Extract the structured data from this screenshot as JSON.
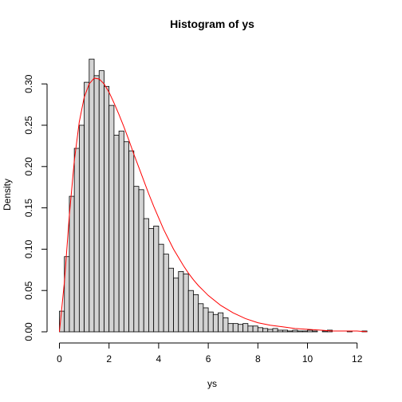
{
  "chart_data": {
    "type": "bar",
    "title": "Histogram of ys",
    "xlabel": "ys",
    "ylabel": "Density",
    "xlim": [
      0,
      12.4
    ],
    "ylim": [
      0,
      0.33
    ],
    "grid": false,
    "bin_width": 0.2,
    "x_ticks": [
      "0",
      "2",
      "4",
      "6",
      "8",
      "10",
      "12"
    ],
    "y_ticks": [
      "0.00",
      "0.05",
      "0.10",
      "0.15",
      "0.20",
      "0.25",
      "0.30"
    ],
    "bins_start": [
      0.0,
      0.2,
      0.4,
      0.6,
      0.8,
      1.0,
      1.2,
      1.4,
      1.6,
      1.8,
      2.0,
      2.2,
      2.4,
      2.6,
      2.8,
      3.0,
      3.2,
      3.4,
      3.6,
      3.8,
      4.0,
      4.2,
      4.4,
      4.6,
      4.8,
      5.0,
      5.2,
      5.4,
      5.6,
      5.8,
      6.0,
      6.2,
      6.4,
      6.6,
      6.8,
      7.0,
      7.2,
      7.4,
      7.6,
      7.8,
      8.0,
      8.2,
      8.4,
      8.6,
      8.8,
      9.0,
      9.2,
      9.4,
      9.6,
      9.8,
      10.0,
      10.2,
      10.4,
      10.6,
      10.8,
      11.0,
      11.2,
      11.4,
      11.6,
      11.8,
      12.0,
      12.2
    ],
    "values": [
      0.025,
      0.091,
      0.164,
      0.222,
      0.25,
      0.302,
      0.33,
      0.31,
      0.316,
      0.297,
      0.274,
      0.238,
      0.243,
      0.23,
      0.219,
      0.176,
      0.172,
      0.137,
      0.125,
      0.128,
      0.106,
      0.094,
      0.077,
      0.065,
      0.073,
      0.07,
      0.05,
      0.045,
      0.034,
      0.029,
      0.024,
      0.021,
      0.023,
      0.017,
      0.01,
      0.01,
      0.009,
      0.01,
      0.007,
      0.007,
      0.005,
      0.004,
      0.003,
      0.004,
      0.002,
      0.002,
      0.001,
      0.002,
      0.001,
      0.001,
      0.002,
      0.001,
      0.0,
      0.001,
      0.002,
      0.0,
      0.0,
      0.0,
      0.001,
      0.0,
      0.0,
      0.001
    ],
    "density_curve": {
      "name": "",
      "color": "#ff0000",
      "x": [
        0.0,
        0.2,
        0.4,
        0.6,
        0.8,
        1.0,
        1.2,
        1.4,
        1.6,
        1.8,
        2.0,
        2.2,
        2.4,
        2.6,
        2.8,
        3.0,
        3.2,
        3.4,
        3.6,
        3.8,
        4.0,
        4.2,
        4.4,
        4.6,
        4.8,
        5.0,
        5.2,
        5.4,
        5.6,
        5.8,
        6.0,
        6.5,
        7.0,
        7.5,
        8.0,
        8.5,
        9.0,
        9.5,
        10.0,
        10.5,
        11.0,
        11.5,
        12.0,
        12.4
      ],
      "y": [
        0.0,
        0.06,
        0.141,
        0.207,
        0.254,
        0.284,
        0.3,
        0.307,
        0.306,
        0.3,
        0.29,
        0.277,
        0.263,
        0.248,
        0.232,
        0.215,
        0.199,
        0.183,
        0.167,
        0.152,
        0.138,
        0.124,
        0.112,
        0.1,
        0.09,
        0.08,
        0.071,
        0.063,
        0.056,
        0.05,
        0.044,
        0.032,
        0.023,
        0.016,
        0.011,
        0.008,
        0.006,
        0.004,
        0.003,
        0.002,
        0.001,
        0.001,
        0.001,
        0.0
      ]
    }
  }
}
